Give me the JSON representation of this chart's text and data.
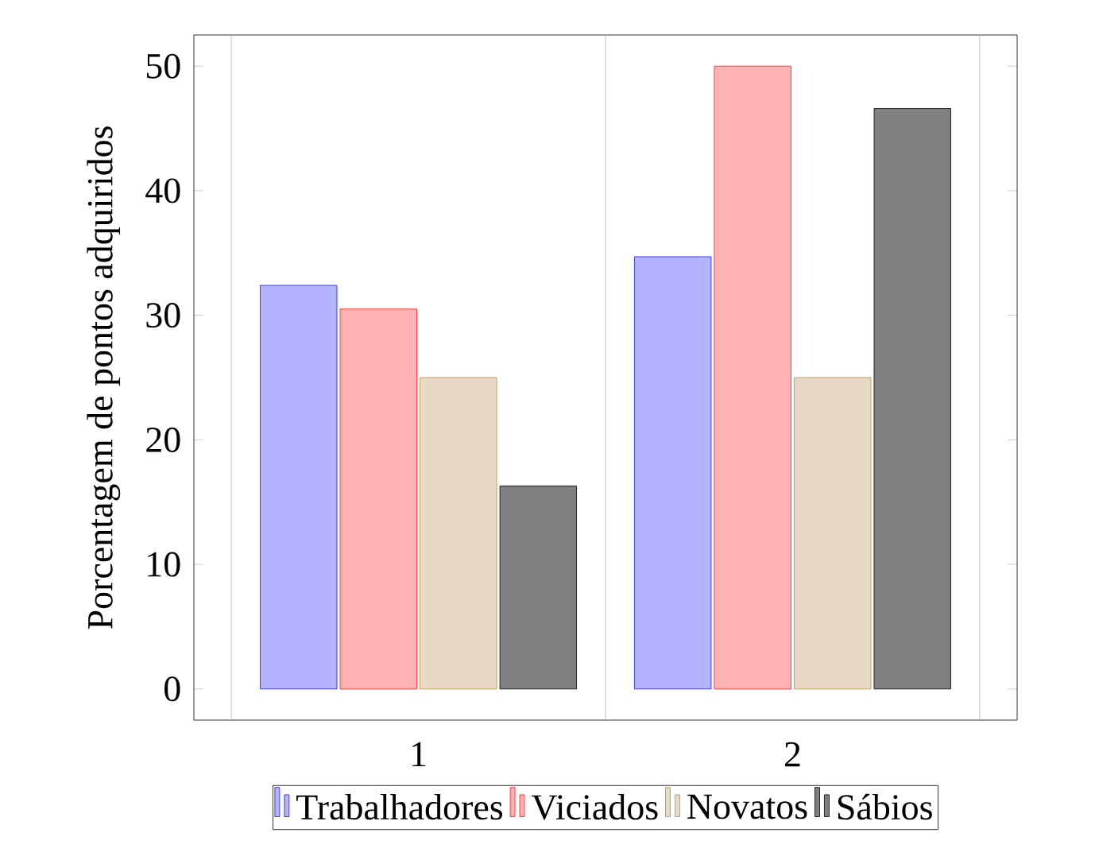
{
  "chart_data": {
    "type": "bar",
    "ylabel": "Porcentagem de pontos adquiridos",
    "categories": [
      "1",
      "2"
    ],
    "series": [
      {
        "name": "Trabalhadores",
        "color": "#b3b3ff",
        "values": [
          32.4,
          34.7
        ]
      },
      {
        "name": "Viciados",
        "color": "#ffb3b3",
        "values": [
          30.5,
          50
        ]
      },
      {
        "name": "Novatos",
        "color": "#e8d9c4",
        "values": [
          25,
          25
        ]
      },
      {
        "name": "Sábios",
        "color": "#808080",
        "values": [
          16.3,
          46.6
        ]
      }
    ],
    "ylim": [
      -2.5,
      52.5
    ],
    "yticks": [
      0,
      10,
      20,
      30,
      40,
      50
    ],
    "grid": "x",
    "legend": "bottom"
  }
}
